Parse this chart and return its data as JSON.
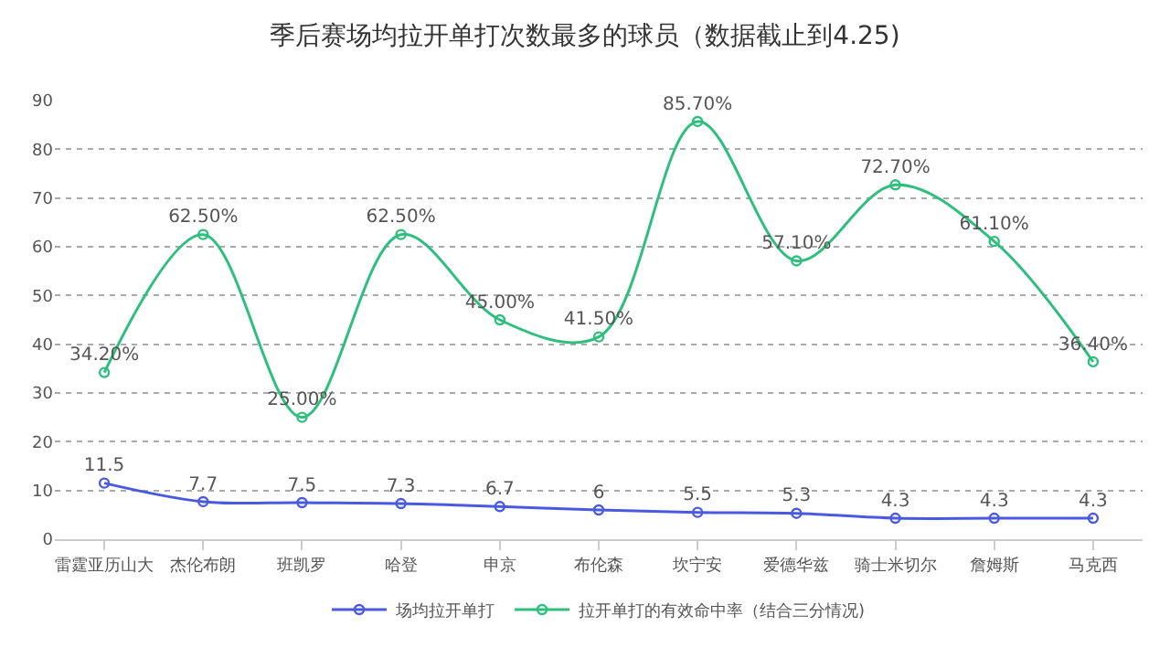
{
  "chart_data": {
    "type": "line",
    "title": "季后赛场均拉开单打次数最多的球员（数据截止到4.25)",
    "categories": [
      "雷霆亚历山大",
      "杰伦布朗",
      "班凯罗",
      "哈登",
      "申京",
      "布伦森",
      "坎宁安",
      "爱德华兹",
      "骑士米切尔",
      "詹姆斯",
      "马克西"
    ],
    "series": [
      {
        "name": "场均拉开单打",
        "color": "#4a5ae0",
        "values": [
          11.5,
          7.7,
          7.5,
          7.3,
          6.7,
          6,
          5.5,
          5.3,
          4.3,
          4.3,
          4.3
        ],
        "value_labels": [
          "11.5",
          "7.7",
          "7.5",
          "7.3",
          "6.7",
          "6",
          "5.5",
          "5.3",
          "4.3",
          "4.3",
          "4.3"
        ]
      },
      {
        "name": "拉开单打的有效命中率（结合三分情况)",
        "color": "#2ebf7e",
        "values": [
          34.2,
          62.5,
          25.0,
          62.5,
          45.0,
          41.5,
          85.7,
          57.1,
          72.7,
          61.1,
          36.4
        ],
        "value_labels": [
          "34.20%",
          "62.50%",
          "25.00%",
          "62.50%",
          "45.00%",
          "41.50%",
          "85.70%",
          "57.10%",
          "72.70%",
          "61.10%",
          "36.40%"
        ]
      }
    ],
    "ylim": [
      0,
      90
    ],
    "yticks": [
      0,
      10,
      20,
      30,
      40,
      50,
      60,
      70,
      80,
      90
    ],
    "grid": "y",
    "legend": "bottom",
    "marker": "circle",
    "line_style": "solid"
  }
}
